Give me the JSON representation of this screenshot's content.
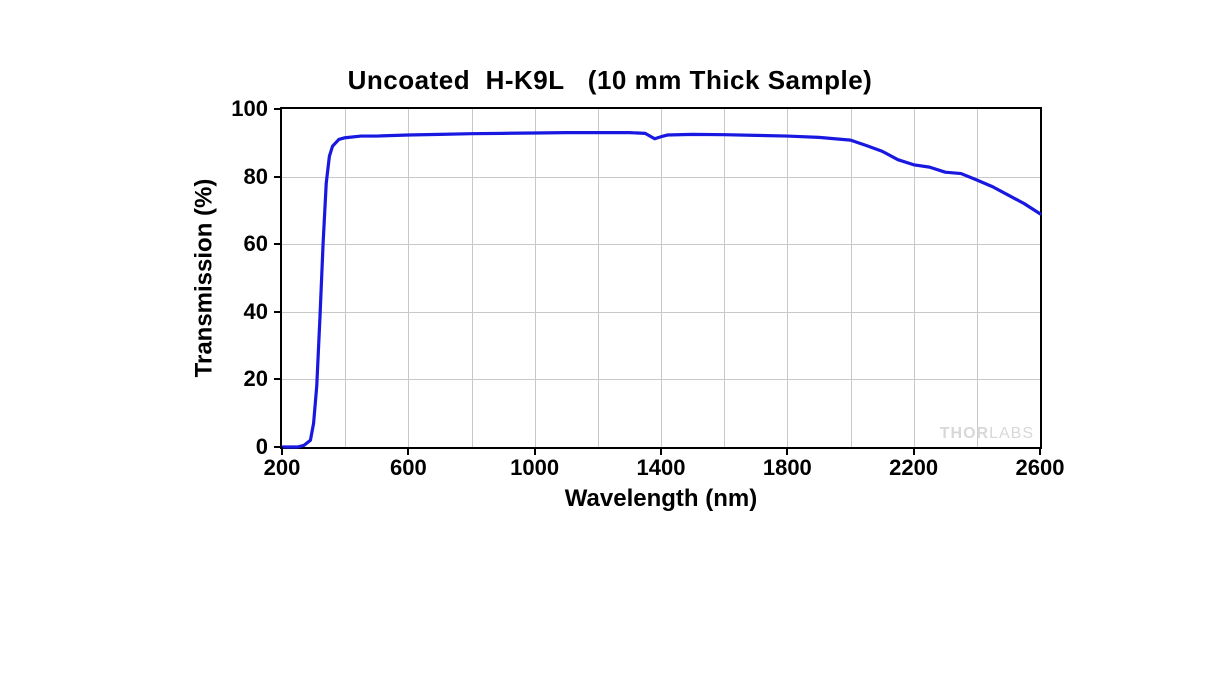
{
  "chart": {
    "type": "line",
    "title_seg1": "Uncoated",
    "title_seg2": "H-K9L",
    "title_seg3": "(10 mm Thick Sample)",
    "title_fontsize": 26,
    "xlabel": "Wavelength (nm)",
    "ylabel": "Transmission (%)",
    "axis_label_fontsize": 24,
    "tick_fontsize": 22,
    "xlim": [
      200,
      2600
    ],
    "ylim": [
      0,
      100
    ],
    "xticks": [
      200,
      600,
      1000,
      1400,
      1800,
      2200,
      2600
    ],
    "yticks": [
      0,
      20,
      40,
      60,
      80,
      100
    ],
    "x_minor_step": 200,
    "y_minor_step": 20,
    "grid_color": "#c8c8c8",
    "axis_color": "#000000",
    "background_color": "#ffffff",
    "line_color": "#1818e0",
    "line_width": 3.2,
    "watermark_text1": "THOR",
    "watermark_text2": "LABS",
    "watermark_color": "#d8d8d8",
    "watermark_fontsize": 16,
    "series": {
      "x": [
        200,
        250,
        270,
        290,
        300,
        310,
        320,
        330,
        340,
        350,
        360,
        380,
        400,
        450,
        500,
        600,
        700,
        800,
        900,
        1000,
        1100,
        1200,
        1300,
        1350,
        1380,
        1400,
        1420,
        1500,
        1600,
        1700,
        1800,
        1900,
        2000,
        2050,
        2100,
        2150,
        2200,
        2250,
        2300,
        2350,
        2400,
        2450,
        2500,
        2550,
        2600
      ],
      "y": [
        0,
        0,
        0.5,
        2,
        7,
        18,
        38,
        60,
        78,
        86,
        89,
        91,
        91.5,
        92,
        92,
        92.3,
        92.5,
        92.7,
        92.8,
        92.9,
        93,
        93,
        93,
        92.8,
        91.2,
        91.8,
        92.3,
        92.5,
        92.4,
        92.2,
        92,
        91.6,
        90.8,
        89.2,
        87.5,
        85,
        83.5,
        82.8,
        81.3,
        80.9,
        79,
        77,
        74.5,
        72,
        69
      ]
    }
  }
}
